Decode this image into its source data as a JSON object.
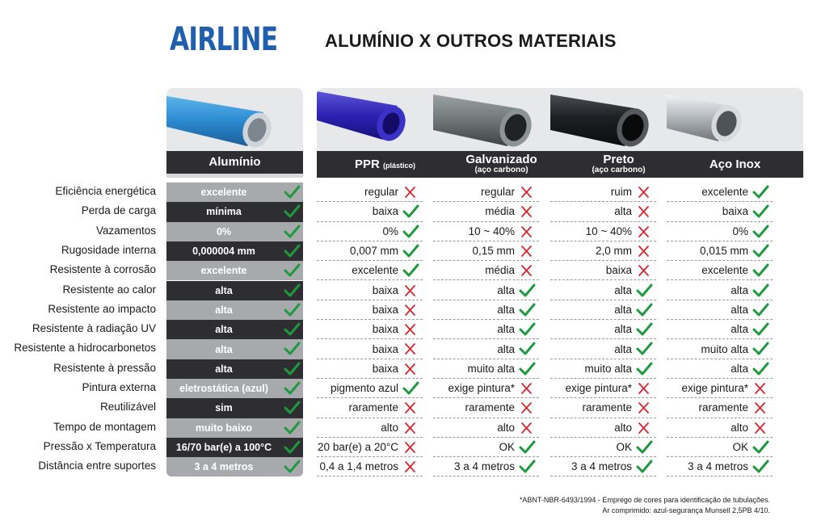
{
  "brand": "AIRLINE",
  "title": "ALUMÍNIO X OUTROS MATERIAIS",
  "colors": {
    "brand": "#1f5fae",
    "dark": "#2e2e32",
    "light": "#a7a9ac",
    "check": "#1e9a3e",
    "cross": "#d9262e"
  },
  "columns": [
    {
      "name": "Alumínio",
      "suffix": "",
      "sub": "",
      "image": "blue-aluminum-pipe"
    },
    {
      "name": "PPR",
      "suffix": "(plástico)",
      "sub": "",
      "image": "purple-plastic-pipe"
    },
    {
      "name": "Galvanizado",
      "suffix": "",
      "sub": "(aço carbono)",
      "image": "galvanized-steel-pipe"
    },
    {
      "name": "Preto",
      "suffix": "",
      "sub": "(aço carbono)",
      "image": "black-steel-pipe"
    },
    {
      "name": "Aço Inox",
      "suffix": "",
      "sub": "",
      "image": "stainless-steel-pipe"
    }
  ],
  "rows": [
    {
      "label": "Eficiência energética",
      "cells": [
        {
          "text": "excelente",
          "mark": "check"
        },
        {
          "text": "regular",
          "mark": "cross"
        },
        {
          "text": "regular",
          "mark": "cross"
        },
        {
          "text": "ruim",
          "mark": "cross"
        },
        {
          "text": "excelente",
          "mark": "check"
        }
      ]
    },
    {
      "label": "Perda de carga",
      "cells": [
        {
          "text": "mínima",
          "mark": "check"
        },
        {
          "text": "baixa",
          "mark": "check"
        },
        {
          "text": "média",
          "mark": "cross"
        },
        {
          "text": "alta",
          "mark": "cross"
        },
        {
          "text": "baixa",
          "mark": "check"
        }
      ]
    },
    {
      "label": "Vazamentos",
      "cells": [
        {
          "text": "0%",
          "mark": "check"
        },
        {
          "text": "0%",
          "mark": "check"
        },
        {
          "text": "10 ~ 40%",
          "mark": "cross"
        },
        {
          "text": "10 ~ 40%",
          "mark": "cross"
        },
        {
          "text": "0%",
          "mark": "check"
        }
      ]
    },
    {
      "label": "Rugosidade interna",
      "cells": [
        {
          "text": "0,000004 mm",
          "mark": "check"
        },
        {
          "text": "0,007 mm",
          "mark": "check"
        },
        {
          "text": "0,15 mm",
          "mark": "cross"
        },
        {
          "text": "2,0 mm",
          "mark": "cross"
        },
        {
          "text": "0,015 mm",
          "mark": "check"
        }
      ]
    },
    {
      "label": "Resistente à corrosão",
      "cells": [
        {
          "text": "excelente",
          "mark": "check"
        },
        {
          "text": "excelente",
          "mark": "check"
        },
        {
          "text": "média",
          "mark": "cross"
        },
        {
          "text": "baixa",
          "mark": "cross"
        },
        {
          "text": "excelente",
          "mark": "check"
        }
      ]
    },
    {
      "label": "Resistente ao calor",
      "cells": [
        {
          "text": "alta",
          "mark": "check"
        },
        {
          "text": "baixa",
          "mark": "cross"
        },
        {
          "text": "alta",
          "mark": "check"
        },
        {
          "text": "alta",
          "mark": "check"
        },
        {
          "text": "alta",
          "mark": "check"
        }
      ]
    },
    {
      "label": "Resistente ao impacto",
      "cells": [
        {
          "text": "alta",
          "mark": "check"
        },
        {
          "text": "baixa",
          "mark": "cross"
        },
        {
          "text": "alta",
          "mark": "check"
        },
        {
          "text": "alta",
          "mark": "check"
        },
        {
          "text": "alta",
          "mark": "check"
        }
      ]
    },
    {
      "label": "Resistente à radiação UV",
      "cells": [
        {
          "text": "alta",
          "mark": "check"
        },
        {
          "text": "baixa",
          "mark": "cross"
        },
        {
          "text": "alta",
          "mark": "check"
        },
        {
          "text": "alta",
          "mark": "check"
        },
        {
          "text": "alta",
          "mark": "check"
        }
      ]
    },
    {
      "label": "Resistente a hidrocarbonetos",
      "cells": [
        {
          "text": "alta",
          "mark": "check"
        },
        {
          "text": "baixa",
          "mark": "cross"
        },
        {
          "text": "alta",
          "mark": "check"
        },
        {
          "text": "alta",
          "mark": "check"
        },
        {
          "text": "muito alta",
          "mark": "check"
        }
      ]
    },
    {
      "label": "Resistente à pressão",
      "cells": [
        {
          "text": "alta",
          "mark": "check"
        },
        {
          "text": "baixa",
          "mark": "cross"
        },
        {
          "text": "muito alta",
          "mark": "check"
        },
        {
          "text": "muito alta",
          "mark": "check"
        },
        {
          "text": "alta",
          "mark": "check"
        }
      ]
    },
    {
      "label": "Pintura externa",
      "cells": [
        {
          "text": "eletrostática (azul)",
          "mark": "check"
        },
        {
          "text": "pigmento azul",
          "mark": "check"
        },
        {
          "text": "exige pintura*",
          "mark": "cross"
        },
        {
          "text": "exige pintura*",
          "mark": "cross"
        },
        {
          "text": "exige pintura*",
          "mark": "cross"
        }
      ]
    },
    {
      "label": "Reutilizável",
      "cells": [
        {
          "text": "sim",
          "mark": "check"
        },
        {
          "text": "raramente",
          "mark": "cross"
        },
        {
          "text": "raramente",
          "mark": "cross"
        },
        {
          "text": "raramente",
          "mark": "cross"
        },
        {
          "text": "raramente",
          "mark": "cross"
        }
      ]
    },
    {
      "label": "Tempo de montagem",
      "cells": [
        {
          "text": "muito baixo",
          "mark": "check"
        },
        {
          "text": "alto",
          "mark": "cross"
        },
        {
          "text": "alto",
          "mark": "cross"
        },
        {
          "text": "alto",
          "mark": "cross"
        },
        {
          "text": "alto",
          "mark": "cross"
        }
      ]
    },
    {
      "label": "Pressão x Temperatura",
      "cells": [
        {
          "text": "16/70 bar(e) a 100°C",
          "mark": "check"
        },
        {
          "text": "20 bar(e) a 20°C",
          "mark": "cross"
        },
        {
          "text": "OK",
          "mark": "check"
        },
        {
          "text": "OK",
          "mark": "check"
        },
        {
          "text": "OK",
          "mark": "check"
        }
      ]
    },
    {
      "label": "Distância entre suportes",
      "cells": [
        {
          "text": "3 a 4 metros",
          "mark": "check"
        },
        {
          "text": "0,4 a 1,4 metros",
          "mark": "cross"
        },
        {
          "text": "3 a 4 metros",
          "mark": "check"
        },
        {
          "text": "3 a 4 metros",
          "mark": "check"
        },
        {
          "text": "3 a 4 metros",
          "mark": "check"
        }
      ]
    }
  ],
  "footnote": {
    "line1": "*ABNT-NBR-6493/1994 - Emprego de cores para identificação de tubulações.",
    "line2": "Ar comprimido: azul-segurança Munsell 2,5PB 4/10."
  }
}
